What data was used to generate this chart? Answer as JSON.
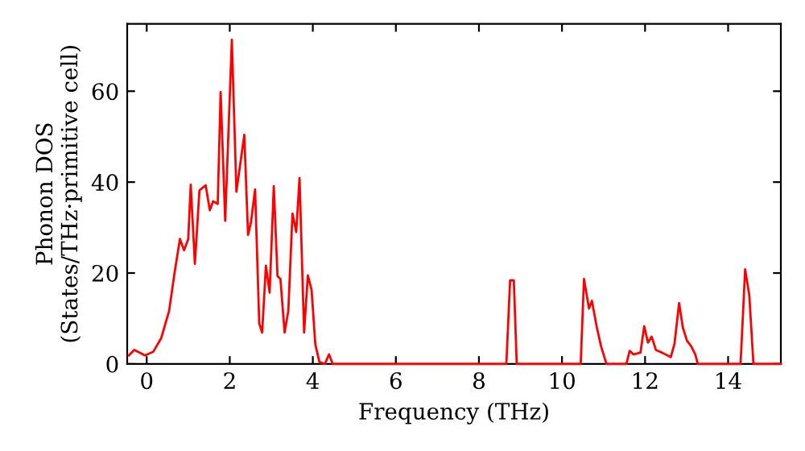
{
  "chart_data": {
    "type": "line",
    "xlabel": "Frequency (THz)",
    "ylabel": "Phonon DOS\n(States/THz·primitive cell)",
    "xlim": [
      -0.47,
      15.27
    ],
    "ylim": [
      0,
      74.8
    ],
    "xticks": [
      0,
      2,
      4,
      6,
      8,
      10,
      12,
      14
    ],
    "yticks": [
      0,
      20,
      40,
      60
    ],
    "grid": false,
    "legend": false,
    "marker": "none",
    "line_style": "solid",
    "series": [
      {
        "color": "#ff0000",
        "x": [
          -0.43,
          -0.3,
          -0.04,
          0.16,
          0.35,
          0.54,
          0.67,
          0.8,
          0.9,
          1.0,
          1.06,
          1.16,
          1.27,
          1.42,
          1.52,
          1.6,
          1.71,
          1.78,
          1.89,
          2.05,
          2.16,
          2.35,
          2.44,
          2.51,
          2.61,
          2.71,
          2.78,
          2.87,
          2.96,
          3.06,
          3.15,
          3.22,
          3.32,
          3.41,
          3.51,
          3.6,
          3.68,
          3.79,
          3.88,
          3.97,
          4.06,
          4.16,
          4.29,
          4.39,
          4.48,
          8.66,
          8.75,
          8.84,
          8.91,
          10.45,
          10.53,
          10.65,
          10.72,
          10.84,
          10.94,
          11.07,
          11.55,
          11.63,
          11.72,
          11.89,
          11.98,
          12.07,
          12.16,
          12.26,
          12.43,
          12.62,
          12.71,
          12.82,
          12.91,
          13.01,
          13.11,
          13.21,
          13.27,
          14.3,
          14.41,
          14.51,
          14.61,
          15.27
        ],
        "values": [
          1.9,
          3.1,
          1.9,
          2.7,
          5.7,
          11.7,
          20,
          27.5,
          25,
          27.5,
          39.4,
          22,
          38.2,
          39.3,
          33.8,
          35.8,
          35.2,
          59.8,
          31.5,
          71.3,
          37.9,
          50.4,
          28.4,
          31.1,
          38.4,
          8.9,
          6.9,
          21.6,
          15.7,
          39.1,
          19.3,
          18.7,
          6.9,
          11.7,
          33.1,
          29,
          40.9,
          6.9,
          19.5,
          16.3,
          4.3,
          0.4,
          0,
          2.1,
          0,
          0,
          18.4,
          18.4,
          0,
          0,
          18.7,
          12.2,
          13.9,
          8,
          3.9,
          0,
          0,
          2.9,
          2.1,
          2.5,
          8.3,
          4.7,
          6,
          3.1,
          2.4,
          1.5,
          4.5,
          13.4,
          8,
          5.1,
          3.9,
          2.1,
          0,
          0,
          20.8,
          15.1,
          0,
          0
        ]
      }
    ]
  }
}
